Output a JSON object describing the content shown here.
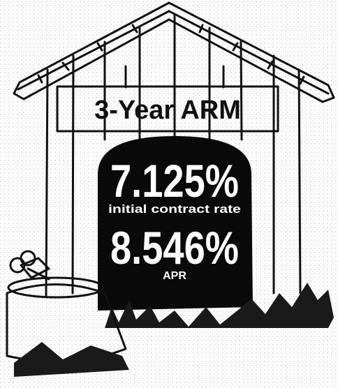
{
  "sign": {
    "title": "3-Year ARM"
  },
  "rates": [
    {
      "value": "7.125%",
      "label": "initial contract rate"
    },
    {
      "value": "8.546%",
      "label": "APR"
    }
  ]
}
